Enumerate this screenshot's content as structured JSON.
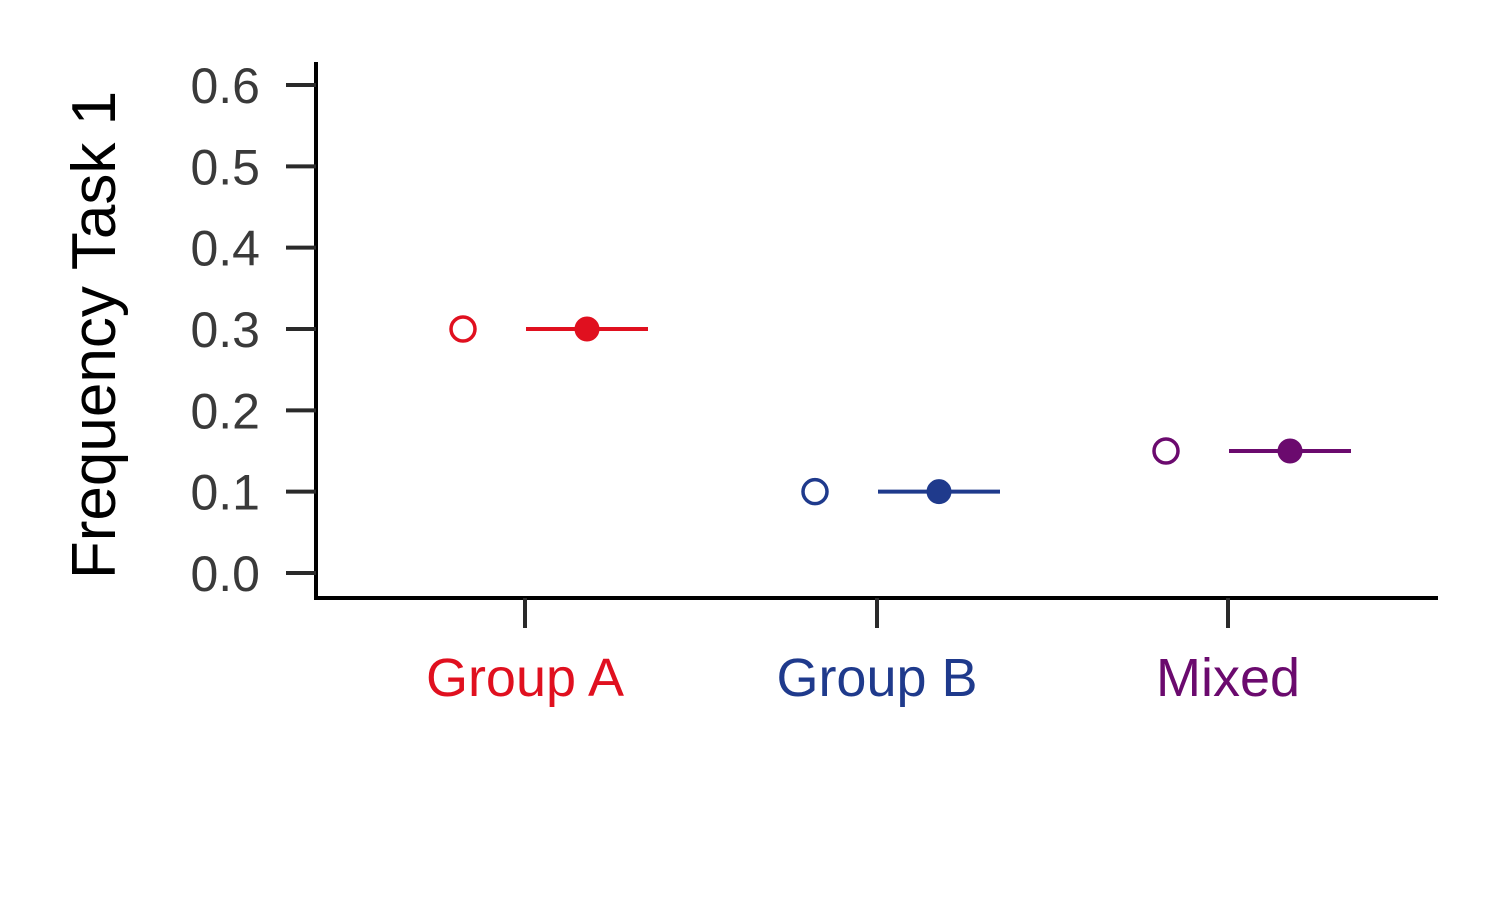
{
  "chart_data": {
    "type": "scatter",
    "title": "",
    "xlabel": "",
    "ylabel": "Frequency Task 1",
    "ylim": [
      -0.03,
      0.63
    ],
    "yticks": [
      "0.0",
      "0.1",
      "0.2",
      "0.3",
      "0.4",
      "0.5",
      "0.6"
    ],
    "ytick_values": [
      0.0,
      0.1,
      0.2,
      0.3,
      0.4,
      0.5,
      0.6
    ],
    "grid": false,
    "categories": [
      "Group A",
      "Group B",
      "Mixed"
    ],
    "category_colors": [
      "#e0101f",
      "#1f3a8c",
      "#6b0a6e"
    ],
    "series": [
      {
        "marker": "open-circle",
        "values": [
          0.3,
          0.1,
          0.15
        ]
      },
      {
        "marker": "filled-circle-with-interval",
        "values": [
          0.3,
          0.1,
          0.15
        ],
        "lower": [
          0.3,
          0.1,
          0.15
        ],
        "upper": [
          0.3,
          0.1,
          0.15
        ]
      }
    ]
  }
}
